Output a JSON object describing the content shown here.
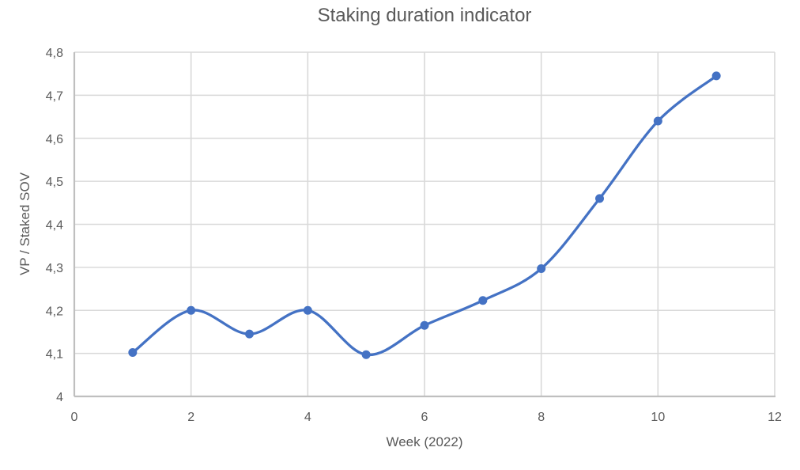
{
  "chart_data": {
    "type": "line",
    "title": "Staking duration indicator",
    "xlabel": "Week (2022)",
    "ylabel": "VP / Staked SOV",
    "x": [
      1,
      2,
      3,
      4,
      5,
      6,
      7,
      8,
      9,
      10,
      11
    ],
    "series": [
      {
        "name": "VP / Staked SOV",
        "values": [
          4.102,
          4.2,
          4.145,
          4.2,
          4.097,
          4.165,
          4.223,
          4.297,
          4.46,
          4.64,
          4.745
        ]
      }
    ],
    "xlim": [
      0,
      12
    ],
    "ylim": [
      4.0,
      4.8
    ],
    "xticks": {
      "values": [
        0,
        2,
        4,
        6,
        8,
        10,
        12
      ],
      "labels": [
        "0",
        "2",
        "4",
        "6",
        "8",
        "10",
        "12"
      ]
    },
    "yticks": {
      "values": [
        4.0,
        4.1,
        4.2,
        4.3,
        4.4,
        4.5,
        4.6,
        4.7,
        4.8
      ],
      "labels": [
        "4",
        "4,1",
        "4,2",
        "4,3",
        "4,4",
        "4,5",
        "4,6",
        "4,7",
        "4,8"
      ]
    },
    "grid": "on",
    "legend": "none",
    "line_smoothed": true,
    "markers": true,
    "colors": {
      "series": "#4472C4",
      "gridline": "#D9D9D9",
      "axis_line": "#BFBFBF",
      "text": "#595959",
      "background": "#FFFFFF"
    }
  }
}
